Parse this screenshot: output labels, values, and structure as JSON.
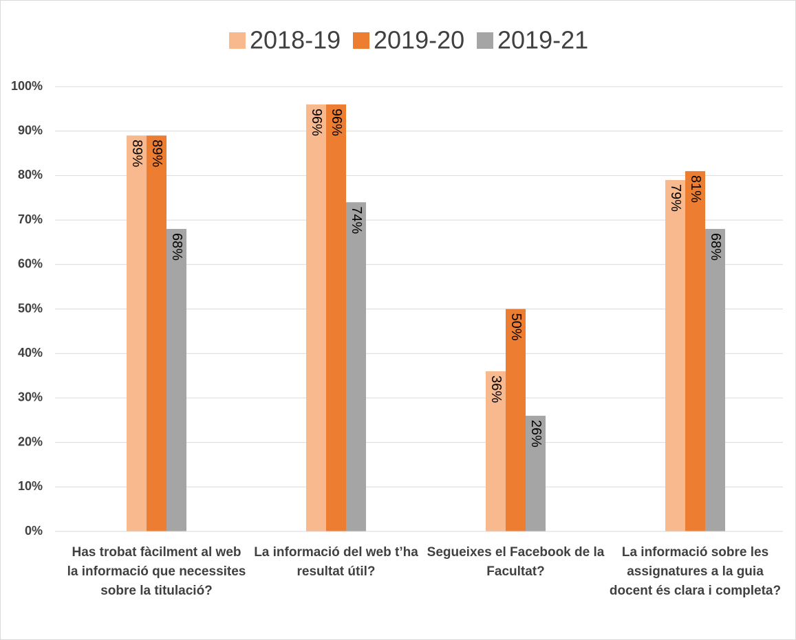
{
  "chart_data": {
    "type": "bar",
    "categories": [
      "Has trobat fàcilment al web la informació que necessites sobre la titulació?",
      "La informació del web t’ha resultat útil?",
      "Segueixes el Facebook de la Facultat?",
      "La informació sobre les assignatures a la guia docent és clara i completa?"
    ],
    "series": [
      {
        "name": "2018-19",
        "color": "#f7b98d",
        "values": [
          89,
          96,
          36,
          79
        ],
        "value_labels": [
          "89%",
          "96%",
          "36%",
          "79%"
        ]
      },
      {
        "name": "2019-20",
        "color": "#ed7d31",
        "values": [
          89,
          96,
          50,
          81
        ],
        "value_labels": [
          "89%",
          "96%",
          "50%",
          "81%"
        ]
      },
      {
        "name": "2019-21",
        "color": "#a5a5a5",
        "values": [
          68,
          74,
          26,
          68
        ],
        "value_labels": [
          "68%",
          "74%",
          "26%",
          "68%"
        ]
      }
    ],
    "ylim": [
      0,
      100
    ],
    "yticks": [
      {
        "value": 0,
        "label": "0%"
      },
      {
        "value": 10,
        "label": "10%"
      },
      {
        "value": 20,
        "label": "20%"
      },
      {
        "value": 30,
        "label": "30%"
      },
      {
        "value": 40,
        "label": "40%"
      },
      {
        "value": 50,
        "label": "50%"
      },
      {
        "value": 60,
        "label": "60%"
      },
      {
        "value": 70,
        "label": "70%"
      },
      {
        "value": 80,
        "label": "80%"
      },
      {
        "value": 90,
        "label": "90%"
      },
      {
        "value": 100,
        "label": "100%"
      }
    ],
    "grid": true,
    "legend": "top"
  }
}
